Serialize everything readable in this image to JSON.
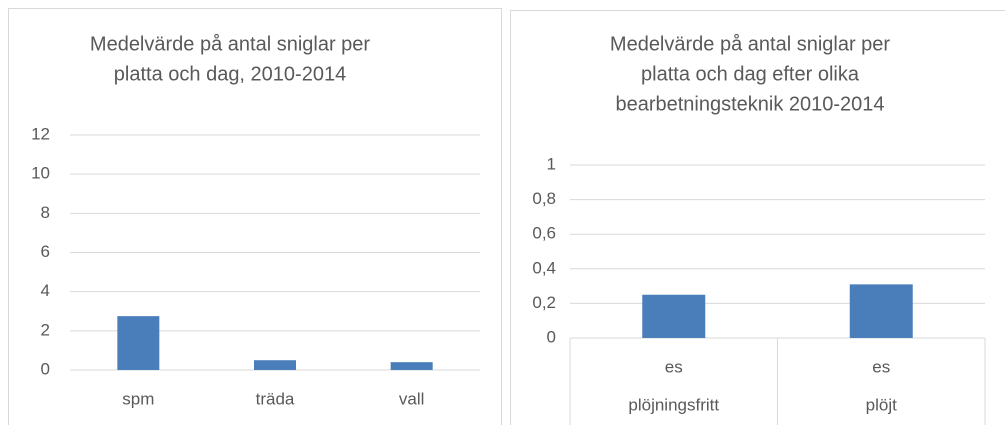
{
  "chart_data": [
    {
      "type": "bar",
      "title": [
        "Medelvärde på antal sniglar per",
        "platta och dag, 2010-2014"
      ],
      "categories": [
        "spm",
        "träda",
        "vall"
      ],
      "values": [
        2.75,
        0.5,
        0.4
      ],
      "color": "#4a7ebb",
      "ylim": [
        0,
        12
      ],
      "yticks": [
        0,
        2,
        4,
        6,
        8,
        10,
        12
      ],
      "grid": true
    },
    {
      "type": "bar",
      "title": [
        "Medelvärde på antal sniglar per",
        "platta och dag efter olika",
        "bearbetningsteknik 2010-2014"
      ],
      "categories": [
        "es",
        "es"
      ],
      "groups": [
        "plöjningsfritt",
        "plöjt"
      ],
      "values": [
        0.25,
        0.31
      ],
      "color": "#4a7ebb",
      "ylim": [
        0,
        1
      ],
      "yticks": [
        0,
        {
          "value": 0.2,
          "label": "0,2"
        },
        {
          "value": 0.4,
          "label": "0,4"
        },
        {
          "value": 0.6,
          "label": "0,6"
        },
        {
          "value": 0.8,
          "label": "0,8"
        },
        1
      ],
      "grid": true
    }
  ]
}
